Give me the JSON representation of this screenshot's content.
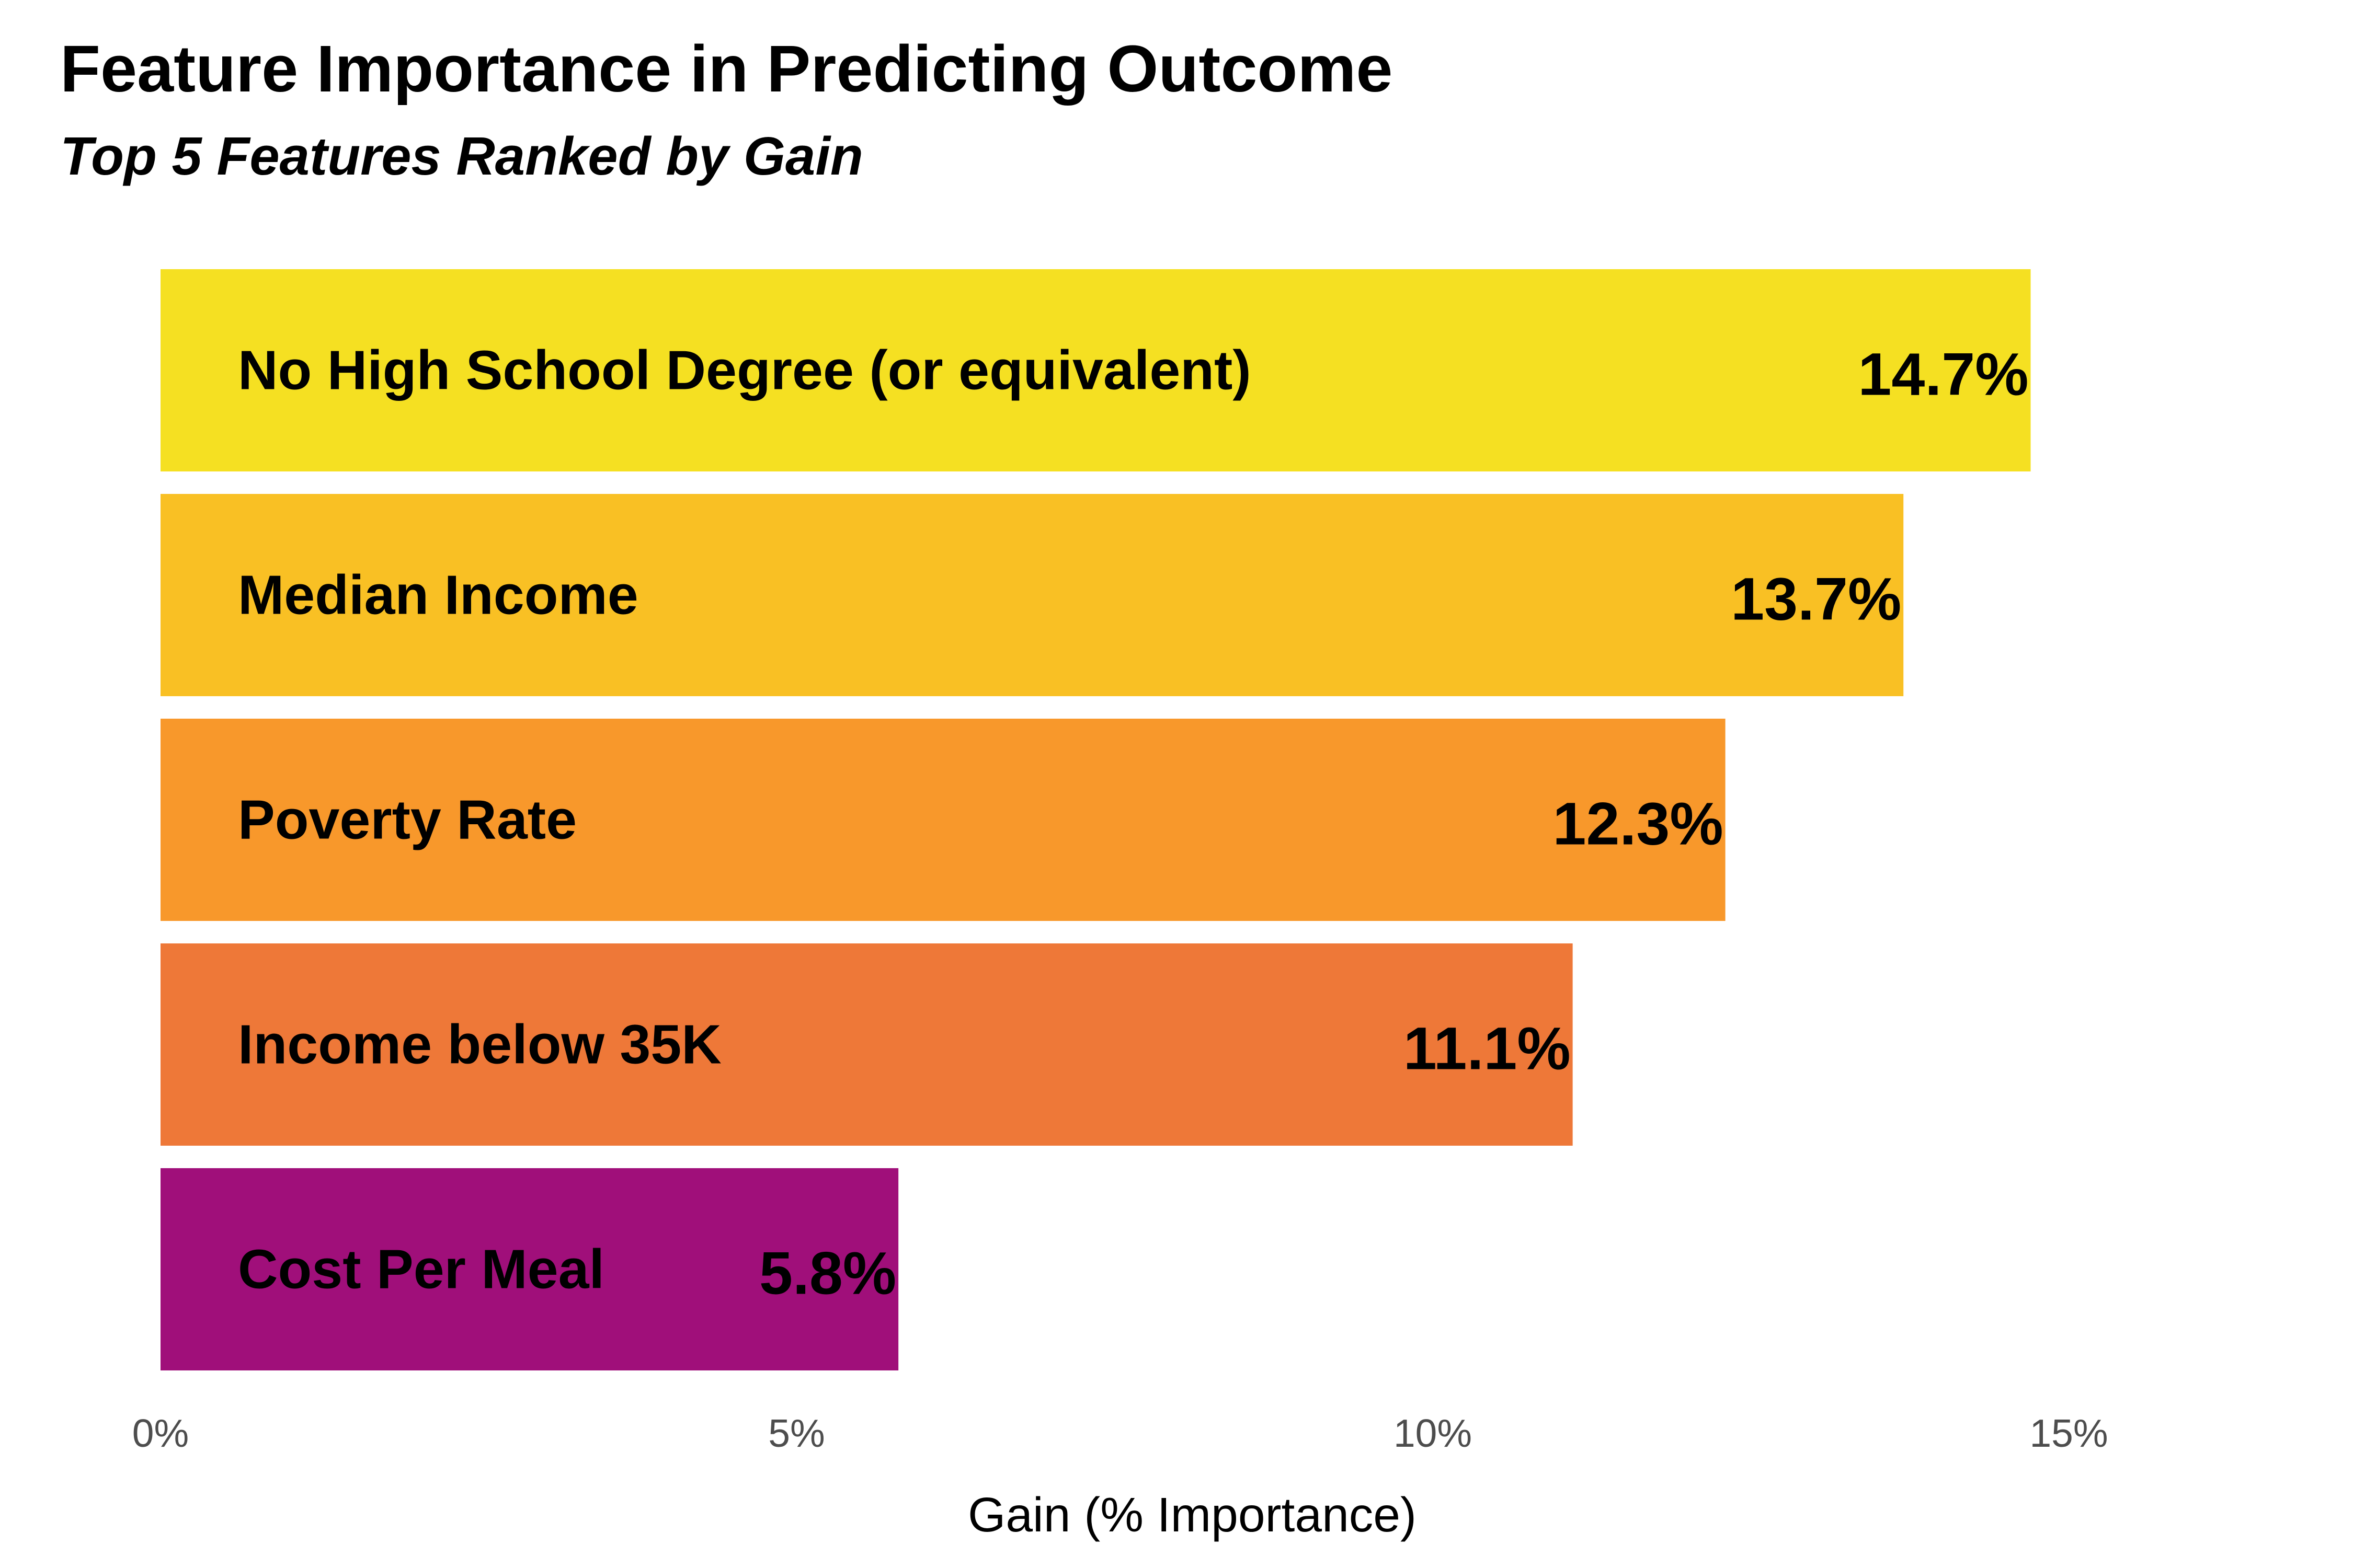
{
  "chart_data": {
    "type": "bar",
    "orientation": "horizontal",
    "title": "Feature Importance in Predicting Outcome",
    "subtitle": "Top 5 Features Ranked by Gain",
    "xlabel": "Gain (% Importance)",
    "ylabel": "",
    "xlim": [
      0,
      16
    ],
    "ticks": [
      {
        "value": 0,
        "label": "0%"
      },
      {
        "value": 5,
        "label": "5%"
      },
      {
        "value": 10,
        "label": "10%"
      },
      {
        "value": 15,
        "label": "15%"
      }
    ],
    "grid": false,
    "legend": "none",
    "bars": [
      {
        "category": "No High School Degree (or equivalent)",
        "value": 14.7,
        "label": "14.7%",
        "color": "#F5E022"
      },
      {
        "category": "Median Income",
        "value": 13.7,
        "label": "13.7%",
        "color": "#F9C024"
      },
      {
        "category": "Poverty Rate",
        "value": 12.3,
        "label": "12.3%",
        "color": "#F8982B"
      },
      {
        "category": "Income below 35K",
        "value": 11.1,
        "label": "11.1%",
        "color": "#EE7838"
      },
      {
        "category": "Cost Per Meal",
        "value": 5.8,
        "label": "5.8%",
        "color": "#A00F7A"
      }
    ]
  }
}
